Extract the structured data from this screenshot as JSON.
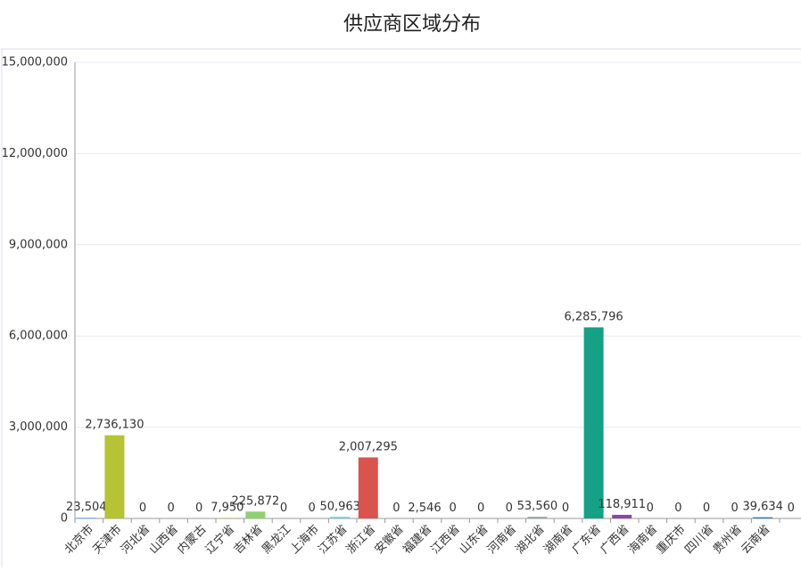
{
  "chart_data": {
    "type": "bar",
    "title": "供应商区域分布",
    "categories": [
      "北京市",
      "天津市",
      "河北省",
      "山西省",
      "内蒙古",
      "辽宁省",
      "吉林省",
      "黑龙江",
      "上海市",
      "江苏省",
      "浙江省",
      "安徽省",
      "福建省",
      "江西省",
      "山东省",
      "河南省",
      "湖北省",
      "湖南省",
      "广东省",
      "广西省",
      "海南省",
      "重庆市",
      "四川省",
      "贵州省",
      "云南省",
      null
    ],
    "values": [
      23504,
      2736130,
      0,
      0,
      0,
      7950,
      225872,
      0,
      0,
      50963,
      2007295,
      0,
      2546,
      0,
      0,
      0,
      53560,
      0,
      6285796,
      118911,
      0,
      0,
      0,
      0,
      39634,
      0
    ],
    "value_labels": [
      "23,504",
      "2,736,130",
      "0",
      "0",
      "0",
      "7,950",
      "225,872",
      "0",
      "0",
      "50,963",
      "2,007,295",
      "0",
      "2,546",
      "0",
      "0",
      "0",
      "53,560",
      "0",
      "6,285,796",
      "118,911",
      "0",
      "0",
      "0",
      "0",
      "39,634",
      "0"
    ],
    "colors": [
      "#5ab1ef",
      "#b6c334",
      "#7f8c8d",
      "#7f8c8d",
      "#7f8c8d",
      "#e6b600",
      "#8fd16f",
      "#7f8c8d",
      "#7f8c8d",
      "#6ecbe0",
      "#d9534f",
      "#7f8c8d",
      "#95706d",
      "#7f8c8d",
      "#7f8c8d",
      "#7f8c8d",
      "#95a5a6",
      "#7f8c8d",
      "#16a085",
      "#8e44ad",
      "#7f8c8d",
      "#7f8c8d",
      "#7f8c8d",
      "#7f8c8d",
      "#2980b9",
      "#7f8c8d"
    ],
    "ylim": [
      0,
      15000000
    ],
    "yticks": [
      0,
      {
        "value": 3000000,
        "label": "3,000,000"
      },
      {
        "value": 6000000,
        "label": "6,000,000"
      },
      {
        "value": 9000000,
        "label": "9,000,000"
      },
      {
        "value": 12000000,
        "label": "12,000,000"
      },
      {
        "value": 15000000,
        "label": "15,000,000"
      }
    ],
    "grid": true
  }
}
